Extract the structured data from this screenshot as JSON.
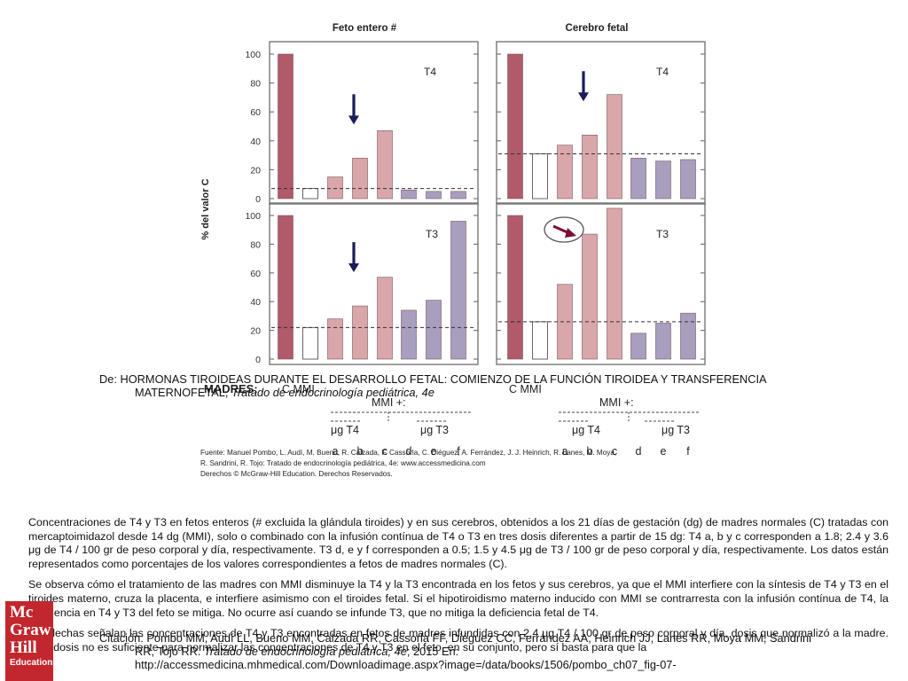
{
  "chart_data": [
    {
      "type": "bar",
      "column_title": "Feto entero #",
      "panel_label": "T4",
      "categories": [
        "C",
        "MMI",
        "a",
        "b",
        "c",
        "d",
        "e",
        "f"
      ],
      "values": [
        100,
        7,
        15,
        28,
        47,
        6,
        5,
        5
      ],
      "reference_line": 7,
      "ylim": [
        0,
        100
      ],
      "yticks": [
        "0",
        "20",
        "40",
        "60",
        "80",
        "100"
      ],
      "arrow": "down-arrow"
    },
    {
      "type": "bar",
      "column_title": "Cerebro fetal",
      "panel_label": "T4",
      "categories": [
        "C",
        "MMI",
        "a",
        "b",
        "c",
        "d",
        "e",
        "f"
      ],
      "values": [
        100,
        31,
        37,
        44,
        72,
        28,
        26,
        27
      ],
      "reference_line": 31,
      "ylim": [
        0,
        100
      ],
      "arrow": "down-arrow"
    },
    {
      "type": "bar",
      "panel_label": "T3",
      "categories": [
        "C",
        "MMI",
        "a",
        "b",
        "c",
        "d",
        "e",
        "f"
      ],
      "values": [
        100,
        22,
        28,
        37,
        57,
        34,
        41,
        96
      ],
      "reference_line": 22,
      "ylim": [
        0,
        100
      ],
      "yticks": [
        "0",
        "20",
        "40",
        "60",
        "80",
        "100"
      ],
      "arrow": "down-arrow"
    },
    {
      "type": "bar",
      "panel_label": "T3",
      "categories": [
        "C",
        "MMI",
        "a",
        "b",
        "c",
        "d",
        "e",
        "f"
      ],
      "values": [
        100,
        26,
        52,
        87,
        105,
        18,
        25,
        32
      ],
      "reference_line": 26,
      "ylim": [
        0,
        100
      ],
      "arrow": "circled-arrow"
    }
  ],
  "axis": {
    "ylabel": "% del valor C"
  },
  "legend": {
    "madres_label": "MADRES:",
    "c_mmi_label": "C MMI",
    "mmi_plus_label": "MMI +:",
    "ug_t4_label": "μg T4",
    "ug_t3_label": "μg T3",
    "letters": [
      "a",
      "b",
      "c",
      "d",
      "e",
      "f"
    ]
  },
  "colors": {
    "control": "#b05a6a",
    "t4_infusion": "#d9a7a9",
    "t3_infusion": "#a89ebe",
    "mmi": "#ffffff",
    "axis": "#777777"
  },
  "source": {
    "line1": "Fuente: Manuel Pombo, L. Audí, M. Bueno, R. Calzada, F. Cassorla, C. Diéguez, A. Ferrández, J. J. Heinrich, R. Lanes, M. Moya,",
    "line2": "R. Sandrini, R. Tojo: Tratado de endocrinología pediátrica, 4e: www.accessmedicina.com",
    "line3": "Derechos © McGraw-Hill Education. Derechos Reservados."
  },
  "caption": {
    "p1": "Concentraciones de T4 y T3 en fetos enteros (# excluida la glándula tiroides) y en sus cerebros, obtenidos a los 21 días de gestación (dg) de madres normales (C) tratadas con mercaptoimidazol desde 14 dg (MMI), solo o combinado con la infusión contínua de T4 o T3 en tres dosis diferentes a partir de 15 dg: T4 a, b y c corresponden a 1.8; 2.4 y 3.6 μg de T4 / 100 gr de peso corporal y día, respectivamente. T3 d, e y f corresponden a 0.5; 1.5 y 4.5 μg de T3 / 100 gr de peso corporal y día, respectivamente. Los datos están representados como porcentajes de los valores correspondientes a fetos de madres normales (C).",
    "p2": " Se observa cómo el tratamiento de las madres con MMI disminuye la T4 y la T3 encontrada en los fetos y sus cerebros, ya que el MMI interfiere con la síntesis de T4 y T3 en el tiroides materno, cruza la placenta, e interfiere asimismo con el tiroides fetal. Si el hipotiroidismo materno inducido con MMI se contrarresta con la infusión contínua de T4, la deficiencia en T4 y T3 del feto se mitiga. No ocurre así cuando se infunde T3, que no mitiga la deficiencia fetal de T4.",
    "p3": " Las flechas señalan las concentraciones de T4 y T3 encontradas en fetos de madres infundidas con 2.4 μg T4 / 100 gr de peso corporal y día, dosis que normalizó a la madre. Esta dosis no es suficiente para normalizar las concentraciones de T4 y T3 en el feto, en su conjunto, pero sí basta para que la"
  },
  "overlay": {
    "de_line1": "De: HORMONAS TIROIDEAS DURANTE EL DESARROLLO FETAL: COMIENZO DE LA FUNCIÓN TIROIDEA Y TRANSFERENCIA",
    "de_line2a": "MATERNOFETAL, ",
    "de_line2b": "Tratado de endocrinología pediátrica, 4e",
    "cita_line1": "Citación: Pombo MM, Audí LL, Bueno MM, Calzada RR, Cassorla FF, Diéguez CC, Ferrández AA, Heinrich JJ, Lanes RR, Moya MM, Sandrini",
    "cita_line2a": "RR, Tojo RR. ",
    "cita_line2b": "Tratado de endocrinología pediátrica, 4e",
    "cita_line2c": "; 2015 En:",
    "cita_line3": "http://accessmedicina.mhmedical.com/Downloadimage.aspx?image=/data/books/1506/pombo_ch07_fig-07-"
  },
  "logo": {
    "l1": "Mc",
    "l2": "Graw",
    "l3": "Hill",
    "l4": "Education"
  }
}
